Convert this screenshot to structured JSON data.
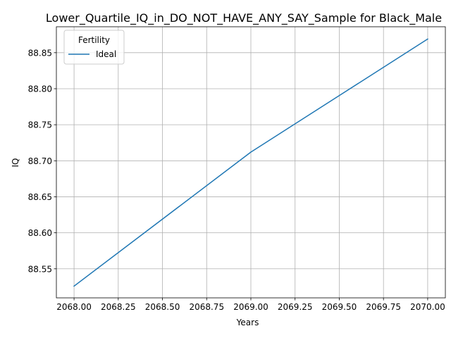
{
  "chart_data": {
    "type": "line",
    "title": "Lower_Quartile_IQ_in_DO_NOT_HAVE_ANY_SAY_Sample for Black_Male",
    "xlabel": "Years",
    "ylabel": "IQ",
    "xlim": [
      2067.9,
      2070.1
    ],
    "ylim": [
      88.5097,
      88.886
    ],
    "x_ticks": [
      2068.0,
      2068.25,
      2068.5,
      2068.75,
      2069.0,
      2069.25,
      2069.5,
      2069.75,
      2070.0
    ],
    "x_tick_labels": [
      "2068.00",
      "2068.25",
      "2068.50",
      "2068.75",
      "2069.00",
      "2069.25",
      "2069.50",
      "2069.75",
      "2070.00"
    ],
    "y_ticks": [
      88.55,
      88.6,
      88.65,
      88.7,
      88.75,
      88.8,
      88.85
    ],
    "y_tick_labels": [
      "88.55",
      "88.60",
      "88.65",
      "88.70",
      "88.75",
      "88.80",
      "88.85"
    ],
    "grid": true,
    "legend": {
      "title": "Fertility",
      "placement": "upper-left"
    },
    "series": [
      {
        "name": "Ideal",
        "color": "#1f77b4",
        "x": [
          2068,
          2069,
          2070
        ],
        "y": [
          88.526,
          88.712,
          88.869
        ]
      }
    ]
  }
}
